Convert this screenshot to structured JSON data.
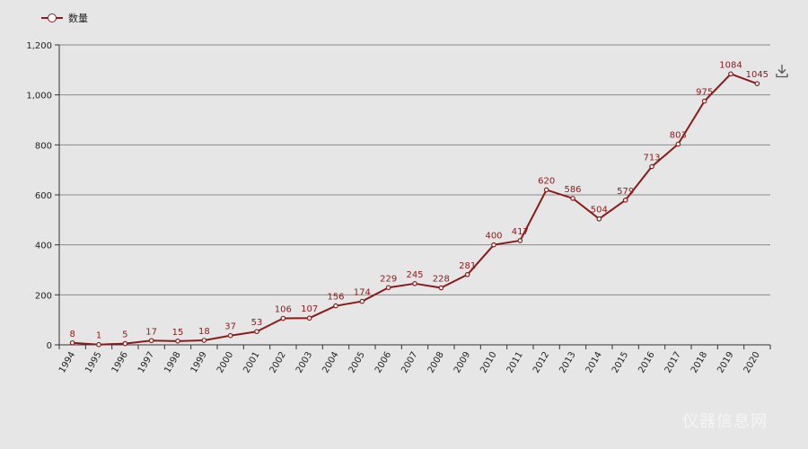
{
  "legend": {
    "series_name": "数量"
  },
  "colors": {
    "series": "#8b1a1a",
    "grid": "#8a8a8a",
    "background": "#e6e6e6",
    "text": "#222222"
  },
  "icons": {
    "toolbox": "download-icon"
  },
  "watermark": {
    "text": "仪器信息网"
  },
  "chart_data": {
    "type": "line",
    "x": [
      "1994",
      "1995",
      "1996",
      "1997",
      "1998",
      "1999",
      "2000",
      "2001",
      "2002",
      "2003",
      "2004",
      "2005",
      "2006",
      "2007",
      "2008",
      "2009",
      "2010",
      "2011",
      "2012",
      "2013",
      "2014",
      "2015",
      "2016",
      "2017",
      "2018",
      "2019",
      "2020"
    ],
    "series": [
      {
        "name": "数量",
        "values": [
          8,
          1,
          5,
          17,
          15,
          18,
          37,
          53,
          106,
          107,
          156,
          174,
          229,
          245,
          228,
          281,
          400,
          417,
          620,
          586,
          504,
          579,
          713,
          803,
          975,
          1084,
          1045
        ]
      }
    ],
    "y_ticks": [
      "0",
      "200",
      "400",
      "600",
      "800",
      "1,000",
      "1,200"
    ],
    "ylim": [
      0,
      1200
    ],
    "grid": true,
    "legend_position": "top-left"
  }
}
